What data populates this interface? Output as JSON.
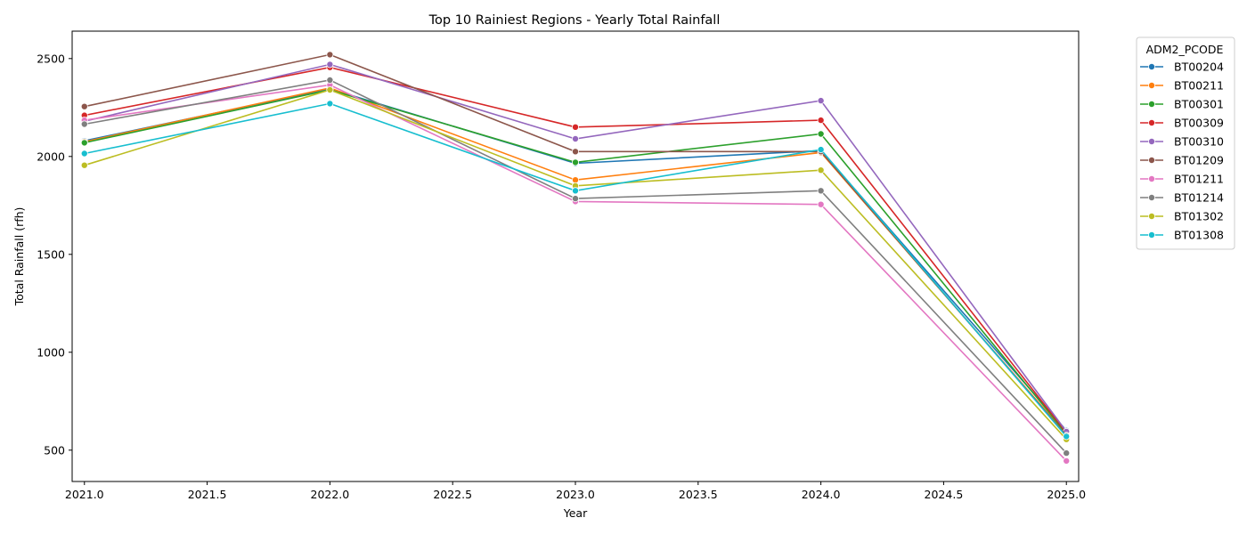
{
  "chart_data": {
    "type": "line",
    "title": "Top 10 Rainiest Regions - Yearly Total Rainfall",
    "xlabel": "Year",
    "ylabel": "Total Rainfall (rfh)",
    "xlim": [
      2020.95,
      2025.05
    ],
    "ylim": [
      340,
      2640
    ],
    "x_ticks": [
      "2021.0",
      "2021.5",
      "2022.0",
      "2022.5",
      "2023.0",
      "2023.5",
      "2024.0",
      "2024.5",
      "2025.0"
    ],
    "y_ticks": [
      "500",
      "1000",
      "1500",
      "2000",
      "2500"
    ],
    "grid": false,
    "legend": {
      "title": "ADM2_PCODE",
      "placement": "outside-right"
    },
    "x": [
      2021,
      2022,
      2023,
      2024,
      2025
    ],
    "series": [
      {
        "name": "BT00204",
        "color": "#1f77b4",
        "values": [
          2080,
          2345,
          1965,
          2030,
          600
        ]
      },
      {
        "name": "BT00211",
        "color": "#ff7f0e",
        "values": [
          2075,
          2350,
          1880,
          2020,
          580
        ]
      },
      {
        "name": "BT00301",
        "color": "#2ca02c",
        "values": [
          2070,
          2340,
          1970,
          2115,
          585
        ]
      },
      {
        "name": "BT00309",
        "color": "#d62728",
        "values": [
          2210,
          2455,
          2150,
          2185,
          590
        ]
      },
      {
        "name": "BT00310",
        "color": "#9467bd",
        "values": [
          2180,
          2470,
          2090,
          2285,
          595
        ]
      },
      {
        "name": "BT01209",
        "color": "#8c564b",
        "values": [
          2255,
          2520,
          2025,
          2025,
          575
        ]
      },
      {
        "name": "BT01211",
        "color": "#e377c2",
        "values": [
          2185,
          2365,
          1770,
          1755,
          445
        ]
      },
      {
        "name": "BT01214",
        "color": "#7f7f7f",
        "values": [
          2165,
          2390,
          1785,
          1825,
          485
        ]
      },
      {
        "name": "BT01302",
        "color": "#bcbd22",
        "values": [
          1955,
          2340,
          1850,
          1930,
          555
        ]
      },
      {
        "name": "BT01308",
        "color": "#17becf",
        "values": [
          2015,
          2270,
          1825,
          2035,
          570
        ]
      }
    ]
  }
}
